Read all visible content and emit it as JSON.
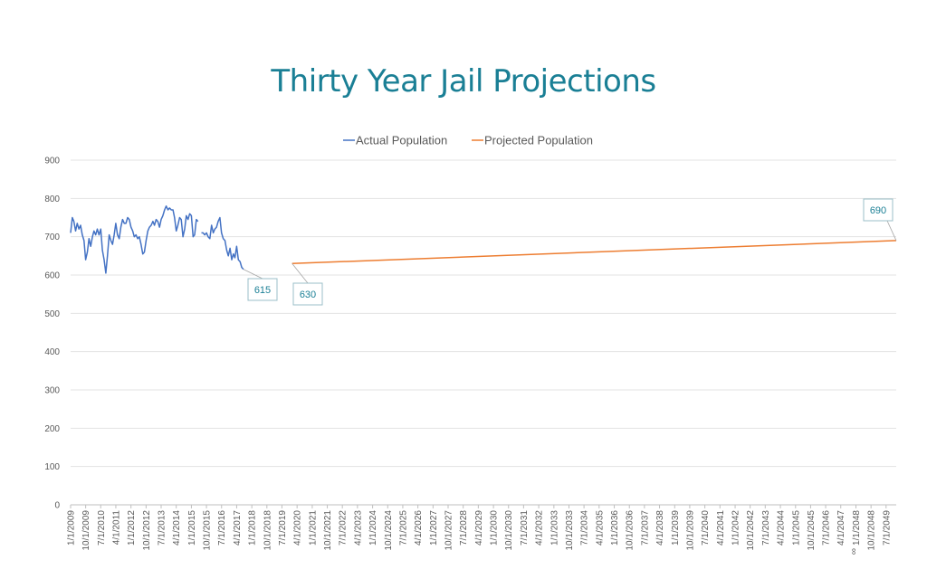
{
  "slide": {
    "title": "Thirty Year Jail Projections"
  },
  "chart_data": {
    "type": "line",
    "title": "",
    "xlabel": "",
    "ylabel": "",
    "ylim": [
      0,
      900
    ],
    "yticks": [
      0,
      100,
      200,
      300,
      400,
      500,
      600,
      700,
      800,
      900
    ],
    "x_tick_labels": [
      "1/1/2009",
      "10/1/2009",
      "7/1/2010",
      "4/1/2011",
      "1/1/2012",
      "10/1/2012",
      "7/1/2013",
      "4/1/2014",
      "1/1/2015",
      "10/1/2015",
      "7/1/2016",
      "4/1/2017",
      "1/1/2018",
      "10/1/2018",
      "7/1/2019",
      "4/1/2020",
      "1/1/2021",
      "10/1/2021",
      "7/1/2022",
      "4/1/2023",
      "1/1/2024",
      "10/1/2024",
      "7/1/2025",
      "4/1/2026",
      "1/1/2027",
      "10/1/2027",
      "7/1/2028",
      "4/1/2029",
      "1/1/2030",
      "10/1/2030",
      "7/1/2031",
      "4/1/2032",
      "1/1/2033",
      "10/1/2033",
      "7/1/2034",
      "4/1/2035",
      "1/1/2036",
      "10/1/2036",
      "7/1/2037",
      "4/1/2038",
      "1/1/2039",
      "10/1/2039",
      "7/1/2040",
      "4/1/2041",
      "1/1/2042",
      "10/1/2042",
      "7/1/2043",
      "4/1/2044",
      "1/1/2045",
      "10/1/2045",
      "7/1/2046",
      "4/1/2047",
      "1/1/2048",
      "10/1/2048",
      "7/1/2049"
    ],
    "grid": true,
    "legend_position": "top",
    "series": [
      {
        "name": "Actual Population",
        "color": "#4472c4",
        "start": "1/1/2009",
        "interval_months": 1,
        "values": [
          710,
          750,
          740,
          715,
          735,
          720,
          730,
          705,
          690,
          640,
          660,
          695,
          675,
          700,
          715,
          705,
          720,
          705,
          720,
          665,
          640,
          605,
          650,
          705,
          690,
          680,
          705,
          735,
          705,
          695,
          725,
          745,
          735,
          735,
          750,
          745,
          725,
          715,
          700,
          705,
          695,
          700,
          680,
          655,
          660,
          690,
          715,
          725,
          730,
          740,
          730,
          745,
          740,
          725,
          745,
          755,
          770,
          780,
          770,
          775,
          770,
          770,
          750,
          715,
          730,
          750,
          745,
          700,
          720,
          755,
          745,
          760,
          755,
          700,
          705,
          745,
          740,
          null,
          710,
          710,
          705,
          710,
          700,
          695,
          730,
          710,
          720,
          725,
          740,
          750,
          710,
          695,
          690,
          665,
          650,
          670,
          640,
          655,
          645,
          675,
          640,
          635,
          620,
          615
        ],
        "last_label": "615"
      },
      {
        "name": "Projected Population",
        "color": "#ed7d31",
        "start": "1/1/2020",
        "end": "1/1/2050",
        "values": [
          630,
          690
        ],
        "start_label": "630",
        "end_label": "690"
      }
    ],
    "annotations": [
      "615",
      "630",
      "690",
      "∞"
    ]
  }
}
